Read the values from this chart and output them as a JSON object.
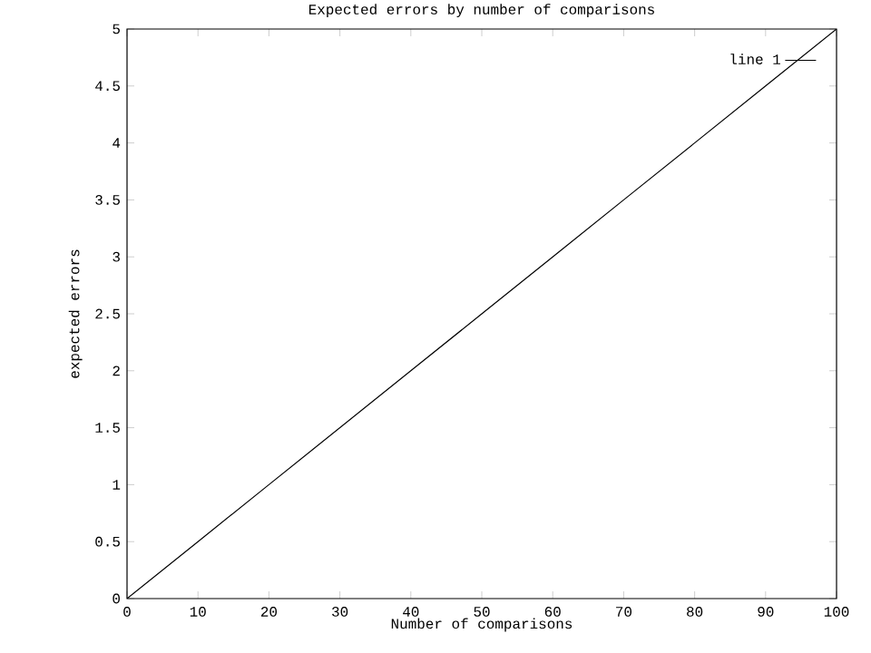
{
  "chart_data": {
    "type": "line",
    "title": "Expected errors by number of comparisons",
    "xlabel": "Number of comparisons",
    "ylabel": "expected errors",
    "x": [
      0,
      10,
      20,
      30,
      40,
      50,
      60,
      70,
      80,
      90,
      100
    ],
    "series": [
      {
        "name": "line 1",
        "color": "#000000",
        "values": [
          0,
          0.5,
          1,
          1.5,
          2,
          2.5,
          3,
          3.5,
          4,
          4.5,
          5
        ]
      }
    ],
    "xlim": [
      0,
      100
    ],
    "ylim": [
      0,
      5
    ],
    "xticks": [
      0,
      10,
      20,
      30,
      40,
      50,
      60,
      70,
      80,
      90,
      100
    ],
    "yticks": [
      0,
      0.5,
      1,
      1.5,
      2,
      2.5,
      3,
      3.5,
      4,
      4.5,
      5
    ],
    "legend": "top right",
    "marker": "none",
    "line_style": "solid",
    "grid": false
  }
}
